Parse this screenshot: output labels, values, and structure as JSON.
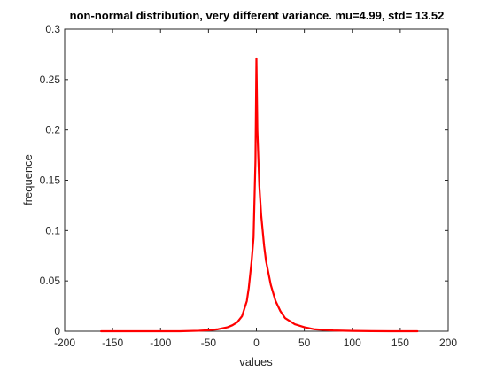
{
  "chart_data": {
    "type": "line",
    "title": "non-normal distribution, very different variance. mu=4.99, std=   13.52",
    "xlabel": "values",
    "ylabel": "frequence",
    "xlim": [
      -200,
      200
    ],
    "ylim": [
      0,
      0.3
    ],
    "xticks": [
      -200,
      -150,
      -100,
      -50,
      0,
      50,
      100,
      150,
      200
    ],
    "xtick_labels": [
      "-200",
      "-150",
      "-100",
      "-50",
      "0",
      "50",
      "100",
      "150",
      "200"
    ],
    "yticks": [
      0,
      0.05,
      0.1,
      0.15,
      0.2,
      0.25,
      0.3
    ],
    "ytick_labels": [
      "0",
      "0.05",
      "0.1",
      "0.15",
      "0.2",
      "0.25",
      "0.3"
    ],
    "grid": false,
    "series": [
      {
        "color": "#ff0000",
        "x": [
          -162,
          -140,
          -120,
          -100,
          -80,
          -60,
          -50,
          -40,
          -30,
          -25,
          -20,
          -15,
          -10,
          -8,
          -5,
          -3,
          -1,
          0,
          1,
          3,
          5,
          8,
          10,
          15,
          20,
          25,
          30,
          40,
          50,
          60,
          80,
          100,
          120,
          140,
          168
        ],
        "y": [
          0,
          0,
          0,
          0,
          0,
          0.0005,
          0.001,
          0.002,
          0.004,
          0.006,
          0.009,
          0.015,
          0.03,
          0.043,
          0.07,
          0.093,
          0.17,
          0.271,
          0.2,
          0.145,
          0.115,
          0.085,
          0.07,
          0.046,
          0.03,
          0.02,
          0.013,
          0.007,
          0.004,
          0.002,
          0.0008,
          0.0003,
          0.0001,
          0,
          0
        ]
      }
    ]
  }
}
